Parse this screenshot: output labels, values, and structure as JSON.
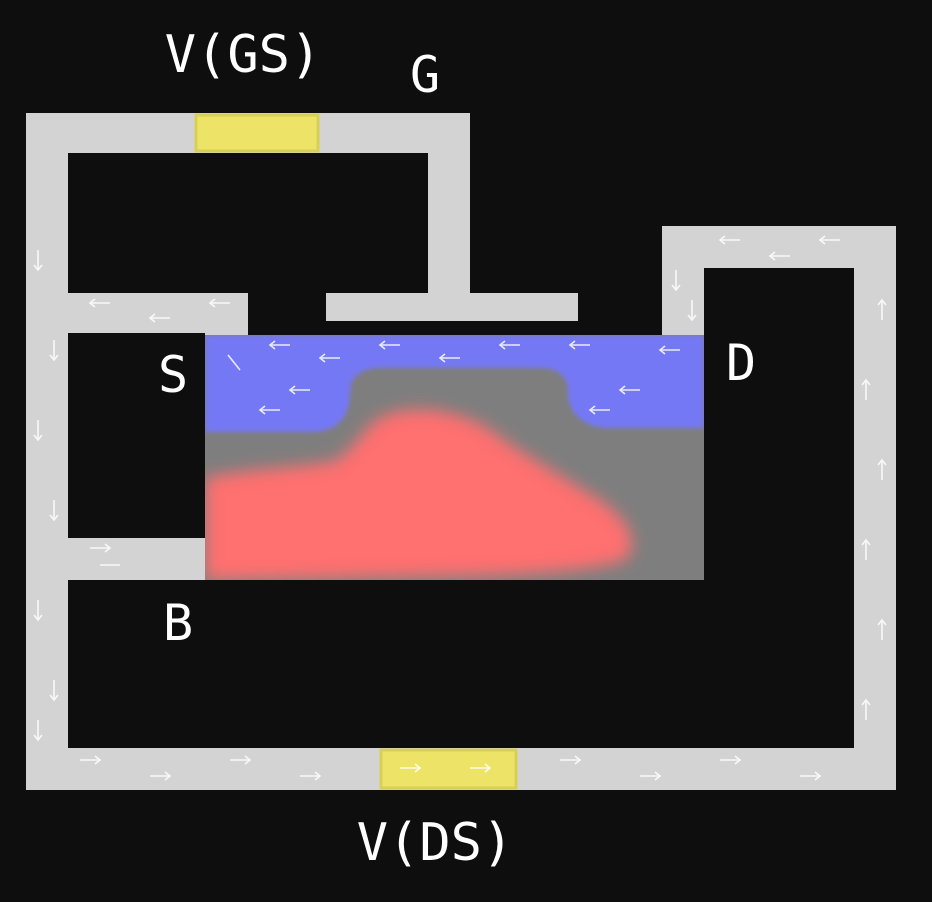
{
  "labels": {
    "vgs": "V(GS)",
    "gate": "G",
    "source": "S",
    "drain": "D",
    "body": "B",
    "vds": "V(DS)"
  },
  "colors": {
    "background": "#0e0e0e",
    "wire": "#d3d3d3",
    "voltage_source": "#ede366",
    "n_doped": "#7478f5",
    "substrate": "#7e7e7e",
    "depletion": "#ff7070",
    "current_arrow": "#ffffff"
  }
}
